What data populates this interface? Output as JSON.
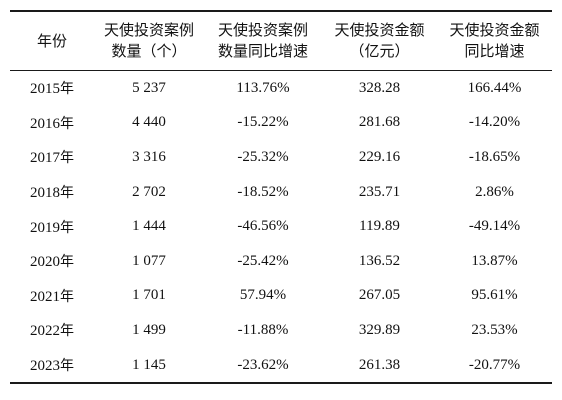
{
  "table": {
    "headers": [
      {
        "line1": "年份",
        "line2": ""
      },
      {
        "line1": "天使投资案例",
        "line2": "数量（个）"
      },
      {
        "line1": "天使投资案例",
        "line2": "数量同比增速"
      },
      {
        "line1": "天使投资金额",
        "line2": "（亿元）"
      },
      {
        "line1": "天使投资金额",
        "line2": "同比增速"
      }
    ],
    "year_suffix": "年",
    "rows": [
      {
        "year": "2015",
        "count": "5 237",
        "count_growth": "113.76%",
        "amount": "328.28",
        "amount_growth": "166.44%"
      },
      {
        "year": "2016",
        "count": "4 440",
        "count_growth": "-15.22%",
        "amount": "281.68",
        "amount_growth": "-14.20%"
      },
      {
        "year": "2017",
        "count": "3 316",
        "count_growth": "-25.32%",
        "amount": "229.16",
        "amount_growth": "-18.65%"
      },
      {
        "year": "2018",
        "count": "2 702",
        "count_growth": "-18.52%",
        "amount": "235.71",
        "amount_growth": "2.86%"
      },
      {
        "year": "2019",
        "count": "1 444",
        "count_growth": "-46.56%",
        "amount": "119.89",
        "amount_growth": "-49.14%"
      },
      {
        "year": "2020",
        "count": "1 077",
        "count_growth": "-25.42%",
        "amount": "136.52",
        "amount_growth": "13.87%"
      },
      {
        "year": "2021",
        "count": "1 701",
        "count_growth": "57.94%",
        "amount": "267.05",
        "amount_growth": "95.61%"
      },
      {
        "year": "2022",
        "count": "1 499",
        "count_growth": "-11.88%",
        "amount": "329.89",
        "amount_growth": "23.53%"
      },
      {
        "year": "2023",
        "count": "1 145",
        "count_growth": "-23.62%",
        "amount": "261.38",
        "amount_growth": "-20.77%"
      }
    ]
  }
}
